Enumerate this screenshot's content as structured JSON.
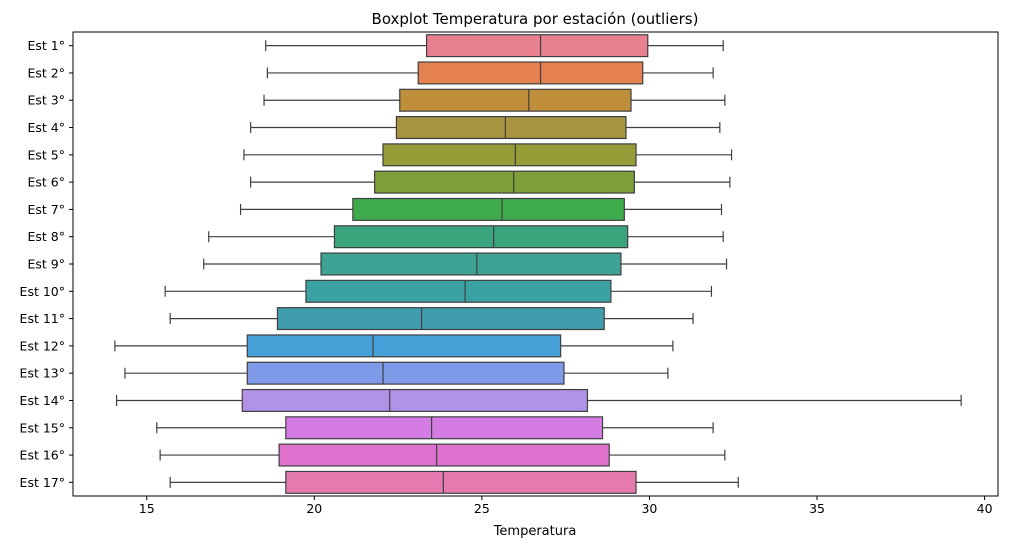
{
  "chart_data": {
    "type": "boxplot",
    "title": "Boxplot Temperatura por estación (outliers)",
    "xlabel": "Temperatura",
    "ylabel": "",
    "xlim": [
      12.8,
      40.4
    ],
    "xticks": [
      15,
      20,
      25,
      30,
      35,
      40
    ],
    "grid": false,
    "orientation": "horizontal",
    "categories": [
      "Est 1°",
      "Est 2°",
      "Est 3°",
      "Est 4°",
      "Est 5°",
      "Est 6°",
      "Est 7°",
      "Est 8°",
      "Est 9°",
      "Est 10°",
      "Est 11°",
      "Est 12°",
      "Est 13°",
      "Est 14°",
      "Est 15°",
      "Est 16°",
      "Est 17°"
    ],
    "boxes": [
      {
        "whisker_low": 18.55,
        "q1": 23.35,
        "median": 26.75,
        "q3": 29.95,
        "whisker_high": 32.2
      },
      {
        "whisker_low": 18.6,
        "q1": 23.1,
        "median": 26.75,
        "q3": 29.8,
        "whisker_high": 31.9
      },
      {
        "whisker_low": 18.5,
        "q1": 22.55,
        "median": 26.4,
        "q3": 29.45,
        "whisker_high": 32.25
      },
      {
        "whisker_low": 18.1,
        "q1": 22.45,
        "median": 25.7,
        "q3": 29.3,
        "whisker_high": 32.1
      },
      {
        "whisker_low": 17.9,
        "q1": 22.05,
        "median": 26.0,
        "q3": 29.6,
        "whisker_high": 32.45
      },
      {
        "whisker_low": 18.1,
        "q1": 21.8,
        "median": 25.95,
        "q3": 29.55,
        "whisker_high": 32.4
      },
      {
        "whisker_low": 17.8,
        "q1": 21.15,
        "median": 25.6,
        "q3": 29.25,
        "whisker_high": 32.15
      },
      {
        "whisker_low": 16.85,
        "q1": 20.6,
        "median": 25.35,
        "q3": 29.35,
        "whisker_high": 32.2
      },
      {
        "whisker_low": 16.7,
        "q1": 20.2,
        "median": 24.85,
        "q3": 29.15,
        "whisker_high": 32.3
      },
      {
        "whisker_low": 15.55,
        "q1": 19.75,
        "median": 24.5,
        "q3": 28.85,
        "whisker_high": 31.85
      },
      {
        "whisker_low": 15.7,
        "q1": 18.9,
        "median": 23.2,
        "q3": 28.65,
        "whisker_high": 31.3
      },
      {
        "whisker_low": 14.05,
        "q1": 18.0,
        "median": 21.75,
        "q3": 27.35,
        "whisker_high": 30.7
      },
      {
        "whisker_low": 14.35,
        "q1": 18.0,
        "median": 22.05,
        "q3": 27.45,
        "whisker_high": 30.55
      },
      {
        "whisker_low": 14.1,
        "q1": 17.85,
        "median": 22.25,
        "q3": 28.15,
        "whisker_high": 39.3
      },
      {
        "whisker_low": 15.3,
        "q1": 19.15,
        "median": 23.5,
        "q3": 28.6,
        "whisker_high": 31.9
      },
      {
        "whisker_low": 15.4,
        "q1": 18.95,
        "median": 23.65,
        "q3": 28.8,
        "whisker_high": 32.25
      },
      {
        "whisker_low": 15.7,
        "q1": 19.15,
        "median": 23.85,
        "q3": 29.6,
        "whisker_high": 32.65
      }
    ],
    "colors": [
      "#e88090",
      "#e5804f",
      "#bf8e3b",
      "#a99441",
      "#969c38",
      "#7f9f3a",
      "#3dab4c",
      "#3aa47c",
      "#3ea294",
      "#3aa2a3",
      "#3f9dae",
      "#46a0d8",
      "#7e9ae8",
      "#b292e8",
      "#d47ce3",
      "#df72cf",
      "#e57ab0"
    ]
  }
}
